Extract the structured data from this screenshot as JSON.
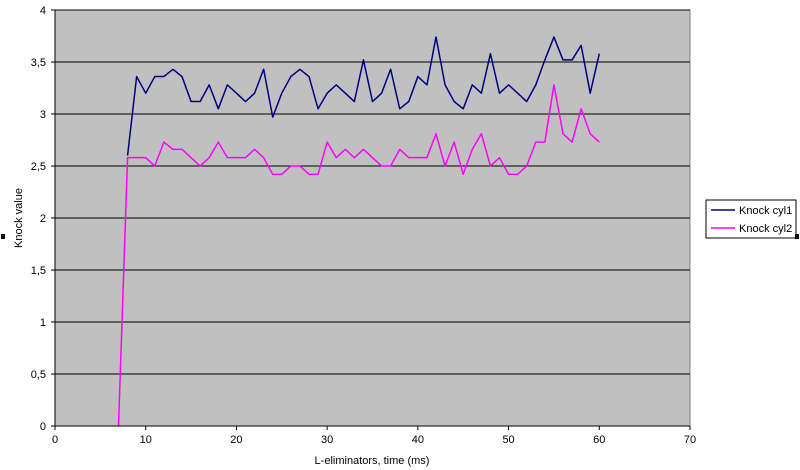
{
  "chart_data": {
    "type": "line",
    "title": "",
    "xlabel": "L-eliminators, time (ms)",
    "ylabel": "Knock value",
    "xlim": [
      0,
      70
    ],
    "ylim": [
      0,
      4
    ],
    "x_ticks": [
      0,
      10,
      20,
      30,
      40,
      50,
      60,
      70
    ],
    "x_tick_labels": [
      "0",
      "10",
      "20",
      "30",
      "40",
      "50",
      "60",
      "70"
    ],
    "y_ticks": [
      0,
      0.5,
      1,
      1.5,
      2,
      2.5,
      3,
      3.5,
      4
    ],
    "y_tick_labels": [
      "0",
      "0,5",
      "1",
      "1,5",
      "2",
      "2,5",
      "3",
      "3,5",
      "4"
    ],
    "grid": "horizontal",
    "plot_background": "#c0c0c0",
    "legend_position": "right",
    "series": [
      {
        "name": "Knock cyl1",
        "color": "#000080",
        "x": [
          8,
          9,
          10,
          11,
          12,
          13,
          14,
          15,
          16,
          17,
          18,
          19,
          20,
          21,
          22,
          23,
          24,
          25,
          26,
          27,
          28,
          29,
          30,
          31,
          32,
          33,
          34,
          35,
          36,
          37,
          38,
          39,
          40,
          41,
          42,
          43,
          44,
          45,
          46,
          47,
          48,
          49,
          50,
          51,
          52,
          53,
          54,
          55,
          56,
          57,
          58,
          59,
          60
        ],
        "values": [
          2.6,
          3.36,
          3.2,
          3.36,
          3.36,
          3.43,
          3.36,
          3.12,
          3.12,
          3.28,
          3.05,
          3.28,
          3.2,
          3.12,
          3.2,
          3.43,
          2.97,
          3.2,
          3.36,
          3.43,
          3.36,
          3.05,
          3.2,
          3.28,
          3.2,
          3.12,
          3.52,
          3.12,
          3.2,
          3.43,
          3.05,
          3.12,
          3.36,
          3.28,
          3.74,
          3.28,
          3.12,
          3.05,
          3.28,
          3.2,
          3.58,
          3.2,
          3.28,
          3.2,
          3.12,
          3.28,
          3.52,
          3.74,
          3.52,
          3.52,
          3.66,
          3.2,
          3.58
        ]
      },
      {
        "name": "Knock cyl2",
        "color": "#ff00ff",
        "x": [
          7,
          8,
          9,
          10,
          11,
          12,
          13,
          14,
          15,
          16,
          17,
          18,
          19,
          20,
          21,
          22,
          23,
          24,
          25,
          26,
          27,
          28,
          29,
          30,
          31,
          32,
          33,
          34,
          35,
          36,
          37,
          38,
          39,
          40,
          41,
          42,
          43,
          44,
          45,
          46,
          47,
          48,
          49,
          50,
          51,
          52,
          53,
          54,
          55,
          56,
          57,
          58,
          59,
          60
        ],
        "values": [
          0,
          2.58,
          2.58,
          2.58,
          2.5,
          2.73,
          2.66,
          2.66,
          2.58,
          2.5,
          2.58,
          2.73,
          2.58,
          2.58,
          2.58,
          2.66,
          2.58,
          2.42,
          2.42,
          2.5,
          2.5,
          2.42,
          2.42,
          2.73,
          2.58,
          2.66,
          2.58,
          2.66,
          2.58,
          2.5,
          2.5,
          2.66,
          2.58,
          2.58,
          2.58,
          2.81,
          2.5,
          2.73,
          2.42,
          2.66,
          2.81,
          2.5,
          2.58,
          2.42,
          2.42,
          2.5,
          2.73,
          2.73,
          3.28,
          2.81,
          2.73,
          3.05,
          2.81,
          2.73
        ]
      }
    ]
  }
}
